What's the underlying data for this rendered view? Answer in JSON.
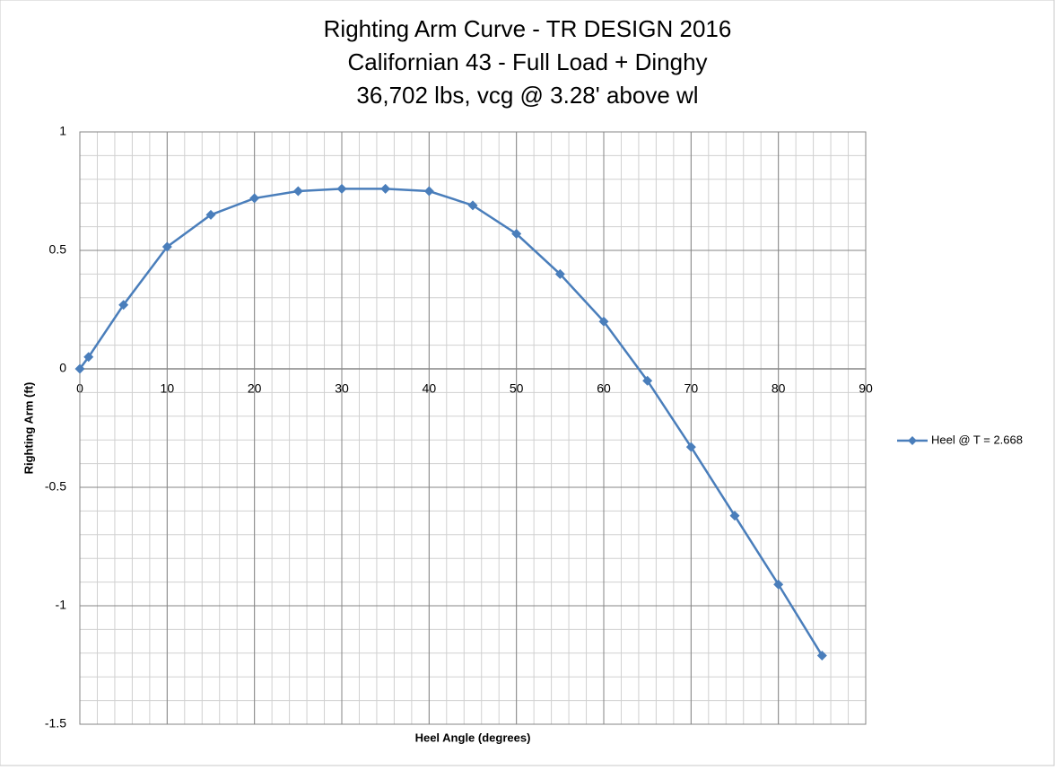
{
  "chart_data": {
    "type": "line",
    "title": [
      "Righting Arm Curve - TR DESIGN 2016",
      "Californian 43 - Full Load + Dinghy",
      "36,702 lbs, vcg @ 3.28' above wl"
    ],
    "x_label": "Heel Angle (degrees)",
    "y_label": "Righting Arm (ft)",
    "x": [
      0,
      1,
      5,
      10,
      15,
      20,
      25,
      30,
      35,
      40,
      45,
      50,
      55,
      60,
      65,
      70,
      75,
      80,
      85
    ],
    "series": [
      {
        "name": "Heel @ T = 2.668",
        "color": "#4a7ebb",
        "values": [
          0,
          0.05,
          0.27,
          0.515,
          0.65,
          0.72,
          0.75,
          0.76,
          0.76,
          0.75,
          0.69,
          0.57,
          0.4,
          0.2,
          -0.05,
          -0.33,
          -0.62,
          -0.91,
          -1.21
        ]
      }
    ],
    "xlim": [
      0,
      90
    ],
    "xticks": [
      0,
      10,
      20,
      30,
      40,
      50,
      60,
      70,
      80,
      90
    ],
    "ylim": [
      -1.5,
      1
    ],
    "yticks": [
      1,
      0.5,
      0,
      -0.5,
      -1,
      -1.5
    ],
    "grid": true,
    "minor_grid": true,
    "legend": "right"
  }
}
